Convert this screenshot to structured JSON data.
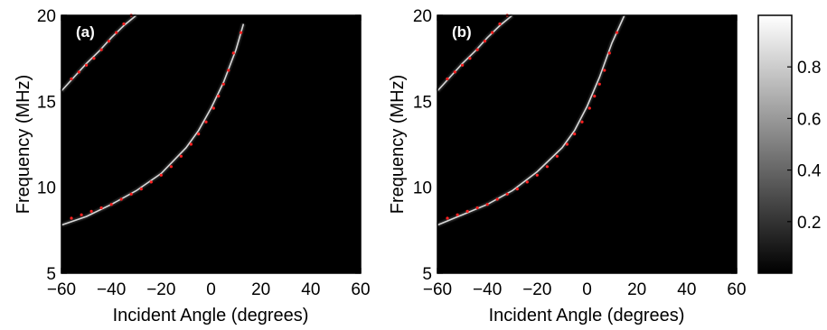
{
  "chart_data": [
    {
      "type": "heatmap",
      "panel_label": "(a)",
      "xlabel": "Incident Angle (degrees)",
      "ylabel": "Frequency (MHz)",
      "xlim": [
        -60,
        60
      ],
      "ylim": [
        5,
        20
      ],
      "xticks": [
        "−60",
        "−40",
        "−20",
        "0",
        "20",
        "40",
        "60"
      ],
      "yticks": [
        "5",
        "10",
        "15",
        "20"
      ],
      "colormap": "gray",
      "bright_curves": [
        {
          "x": [
            -60,
            -55,
            -50,
            -45,
            -40,
            -35,
            -30
          ],
          "y": [
            15.6,
            16.4,
            17.2,
            17.9,
            18.7,
            19.4,
            20.0
          ]
        },
        {
          "x": [
            -60,
            -50,
            -40,
            -30,
            -20,
            -10,
            -5,
            0,
            5,
            10,
            13
          ],
          "y": [
            7.8,
            8.3,
            9.0,
            9.8,
            10.8,
            12.3,
            13.3,
            14.6,
            16.1,
            18.0,
            19.5
          ]
        }
      ],
      "markers": [
        {
          "x": [
            -56,
            -53,
            -50,
            -47,
            -44,
            -41,
            -38,
            -35,
            -32
          ],
          "y": [
            16.3,
            16.7,
            17.1,
            17.5,
            18.0,
            18.5,
            19.0,
            19.5,
            20.0
          ]
        },
        {
          "x": [
            -56,
            -52,
            -48,
            -44,
            -40,
            -36,
            -32,
            -28,
            -24,
            -20,
            -16,
            -12,
            -8,
            -5,
            -2,
            1,
            3,
            5,
            7,
            9,
            12
          ],
          "y": [
            8.2,
            8.4,
            8.6,
            8.8,
            9.0,
            9.3,
            9.6,
            9.9,
            10.3,
            10.7,
            11.2,
            11.8,
            12.5,
            13.1,
            13.8,
            14.6,
            15.3,
            16.0,
            16.8,
            17.8,
            19.0
          ]
        }
      ]
    },
    {
      "type": "heatmap",
      "panel_label": "(b)",
      "xlabel": "Incident Angle (degrees)",
      "ylabel": "Frequency (MHz)",
      "xlim": [
        -60,
        60
      ],
      "ylim": [
        5,
        20
      ],
      "xticks": [
        "−60",
        "−40",
        "−20",
        "0",
        "20",
        "40",
        "60"
      ],
      "yticks": [
        "5",
        "10",
        "15",
        "20"
      ],
      "colormap": "gray",
      "bright_curves": [
        {
          "x": [
            -60,
            -55,
            -50,
            -45,
            -40,
            -35,
            -30
          ],
          "y": [
            15.6,
            16.4,
            17.2,
            17.9,
            18.7,
            19.4,
            20.0
          ]
        },
        {
          "x": [
            -60,
            -50,
            -40,
            -30,
            -20,
            -10,
            -5,
            0,
            5,
            10,
            15
          ],
          "y": [
            7.8,
            8.4,
            9.0,
            9.8,
            10.9,
            12.3,
            13.3,
            14.7,
            16.4,
            18.4,
            20.0
          ]
        }
      ],
      "markers": [
        {
          "x": [
            -56,
            -53,
            -50,
            -47,
            -44,
            -41,
            -38,
            -35,
            -32
          ],
          "y": [
            16.3,
            16.7,
            17.1,
            17.5,
            18.0,
            18.5,
            19.0,
            19.5,
            20.0
          ]
        },
        {
          "x": [
            -56,
            -52,
            -48,
            -44,
            -40,
            -36,
            -32,
            -28,
            -24,
            -20,
            -16,
            -12,
            -8,
            -5,
            -2,
            1,
            3,
            5,
            7,
            9,
            12
          ],
          "y": [
            8.2,
            8.4,
            8.6,
            8.8,
            9.0,
            9.3,
            9.6,
            9.9,
            10.3,
            10.7,
            11.2,
            11.8,
            12.5,
            13.1,
            13.8,
            14.6,
            15.3,
            16.0,
            16.8,
            17.8,
            19.0
          ]
        }
      ]
    }
  ],
  "colorbar": {
    "range": [
      0,
      1
    ],
    "ticks": [
      {
        "value": 0.2,
        "label": "0.2"
      },
      {
        "value": 0.4,
        "label": "0.4"
      },
      {
        "value": 0.6,
        "label": "0.6"
      },
      {
        "value": 0.8,
        "label": "0.8"
      }
    ]
  },
  "colors": {
    "background": "#000000",
    "marker": "#ff2020",
    "curve": "#d8d8d8"
  }
}
